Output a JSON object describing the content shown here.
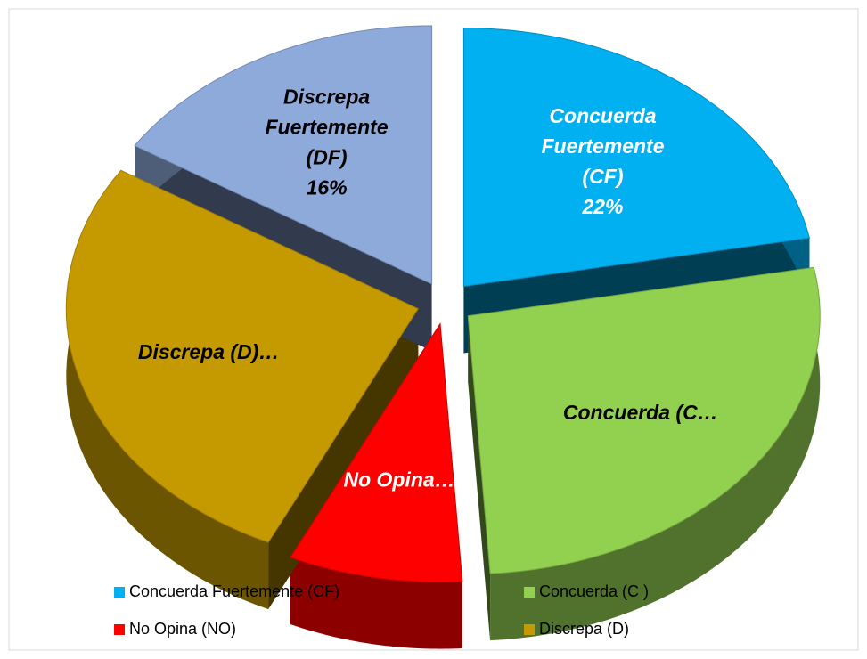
{
  "chart_data": {
    "type": "pie3d",
    "categories": [
      "Concuerda Fuertemente (CF)",
      "Concuerda (C )",
      "No Opina (NO)",
      "Discrepa (D)",
      null
    ],
    "values": [
      22,
      27,
      8,
      27,
      16
    ],
    "colors": [
      "#00b0f0",
      "#92d050",
      "#ff0000",
      "#c59a00",
      "#8eaadb"
    ],
    "labels": [
      [
        "Concuerda",
        "Fuertemente",
        "(CF)",
        "22%"
      ],
      [
        "Concuerda (C…"
      ],
      [
        "No Opina…"
      ],
      [
        "Discrepa (D)…"
      ],
      [
        "Discrepa",
        "Fuertemente",
        "(DF)",
        "16%"
      ]
    ],
    "label_colors": [
      "#ffffff",
      "#000000",
      "#ffffff",
      "#000000",
      "#000000"
    ],
    "legend": "bottom"
  }
}
